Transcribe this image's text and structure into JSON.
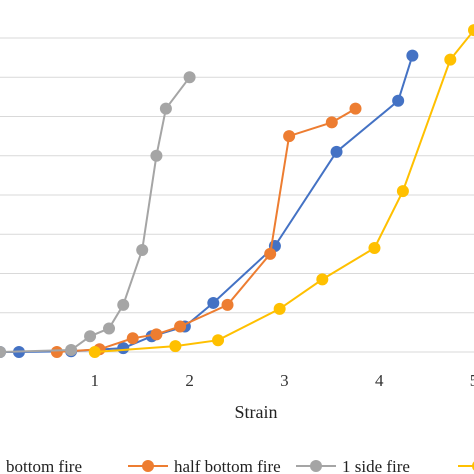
{
  "chart_data": {
    "type": "line",
    "title": "",
    "xlabel": "Strain",
    "ylabel": "",
    "xlim": [
      0,
      5
    ],
    "ylim": [
      0,
      8
    ],
    "grid": true,
    "legend_position": "bottom",
    "x_ticks": [
      1,
      2,
      3,
      4,
      5
    ],
    "series": [
      {
        "name": "bottom fire",
        "color": "#4472c4",
        "marker": "circle",
        "points": [
          [
            0.0,
            0.0
          ],
          [
            0.2,
            0.0
          ],
          [
            0.75,
            0.02
          ],
          [
            1.3,
            0.1
          ],
          [
            1.6,
            0.4
          ],
          [
            1.95,
            0.65
          ],
          [
            2.25,
            1.25
          ],
          [
            2.9,
            2.7
          ],
          [
            3.55,
            5.1
          ],
          [
            4.2,
            6.4
          ],
          [
            4.35,
            7.55
          ]
        ]
      },
      {
        "name": "half bottom fire",
        "color": "#ed7d31",
        "marker": "circle",
        "points": [
          [
            0.6,
            0.0
          ],
          [
            1.05,
            0.07
          ],
          [
            1.4,
            0.35
          ],
          [
            1.65,
            0.45
          ],
          [
            1.9,
            0.65
          ],
          [
            2.4,
            1.2
          ],
          [
            2.85,
            2.5
          ],
          [
            3.05,
            5.5
          ],
          [
            3.5,
            5.85
          ],
          [
            3.75,
            6.2
          ]
        ]
      },
      {
        "name": "1 side fire",
        "color": "#a5a5a5",
        "marker": "circle",
        "points": [
          [
            0.0,
            0.0
          ],
          [
            0.75,
            0.05
          ],
          [
            0.95,
            0.4
          ],
          [
            1.15,
            0.6
          ],
          [
            1.3,
            1.2
          ],
          [
            1.5,
            2.6
          ],
          [
            1.65,
            5.0
          ],
          [
            1.75,
            6.2
          ],
          [
            2.0,
            7.0
          ]
        ]
      },
      {
        "name": "",
        "color": "#ffc000",
        "marker": "circle",
        "points": [
          [
            1.0,
            0.0
          ],
          [
            1.85,
            0.15
          ],
          [
            2.3,
            0.3
          ],
          [
            2.95,
            1.1
          ],
          [
            3.4,
            1.85
          ],
          [
            3.95,
            2.65
          ],
          [
            4.25,
            4.1
          ],
          [
            4.75,
            7.45
          ],
          [
            5.0,
            8.2
          ]
        ]
      }
    ]
  }
}
